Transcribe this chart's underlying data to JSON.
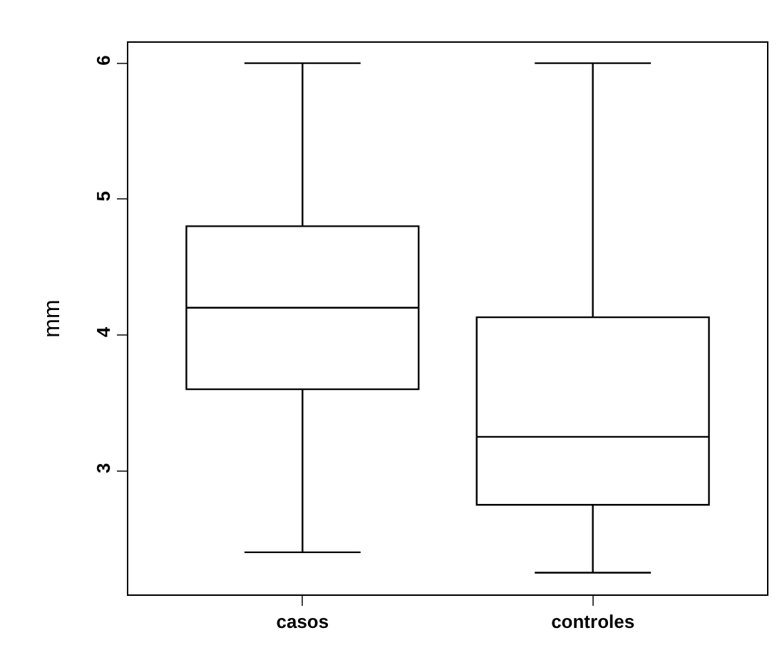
{
  "chart_data": {
    "type": "box",
    "ylabel": "mm",
    "categories": [
      "casos",
      "controles"
    ],
    "boxes": [
      {
        "low": 2.4,
        "q1": 3.6,
        "median": 4.2,
        "q3": 4.8,
        "high": 6
      },
      {
        "low": 2.25,
        "q1": 2.75,
        "median": 3.25,
        "q3": 4.13,
        "high": 6
      }
    ],
    "ylim": [
      2.09,
      6.15
    ],
    "yticks": [
      3,
      4,
      5,
      6
    ],
    "grid": false
  }
}
